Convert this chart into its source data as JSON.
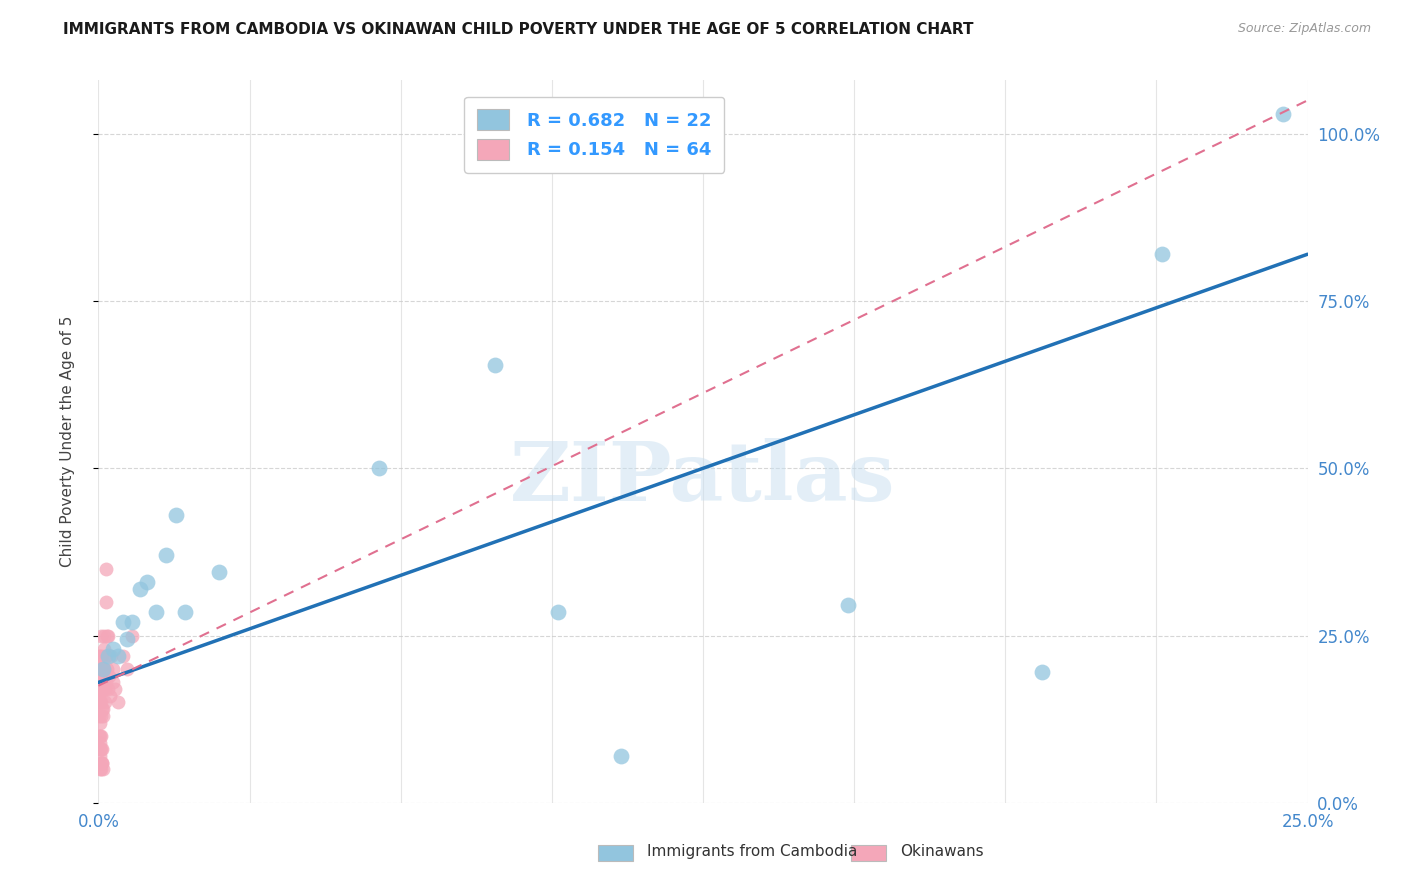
{
  "title": "IMMIGRANTS FROM CAMBODIA VS OKINAWAN CHILD POVERTY UNDER THE AGE OF 5 CORRELATION CHART",
  "source": "Source: ZipAtlas.com",
  "ylabel": "Child Poverty Under the Age of 5",
  "xlim": [
    0,
    0.25
  ],
  "ylim": [
    0,
    1.08
  ],
  "yticks": [
    0.0,
    0.25,
    0.5,
    0.75,
    1.0
  ],
  "xtick_positions": [
    0.0,
    0.03125,
    0.0625,
    0.09375,
    0.125,
    0.15625,
    0.1875,
    0.21875,
    0.25
  ],
  "xtick_labels_show": {
    "0.0": "0.0%",
    "0.25": "25.0%"
  },
  "legend_labels": [
    "Immigrants from Cambodia",
    "Okinawans"
  ],
  "legend_R": [
    0.682,
    0.154
  ],
  "legend_N": [
    22,
    64
  ],
  "blue_scatter_color": "#92c5de",
  "pink_scatter_color": "#f4a7b9",
  "blue_line_color": "#2171b5",
  "pink_line_color": "#e07090",
  "watermark": "ZIPatlas",
  "background_color": "#ffffff",
  "grid_color": "#cccccc",
  "blue_line_x0": 0.0,
  "blue_line_y0": 0.18,
  "blue_line_x1": 0.25,
  "blue_line_y1": 0.82,
  "pink_line_x0": 0.0,
  "pink_line_y0": 0.175,
  "pink_line_x1": 0.25,
  "pink_line_y1": 1.05,
  "cambodia_x": [
    0.001,
    0.002,
    0.003,
    0.004,
    0.005,
    0.006,
    0.007,
    0.0085,
    0.01,
    0.012,
    0.014,
    0.016,
    0.018,
    0.025,
    0.058,
    0.082,
    0.095,
    0.108,
    0.155,
    0.195,
    0.22,
    0.245
  ],
  "cambodia_y": [
    0.2,
    0.22,
    0.23,
    0.22,
    0.27,
    0.245,
    0.27,
    0.32,
    0.33,
    0.285,
    0.37,
    0.43,
    0.285,
    0.345,
    0.5,
    0.655,
    0.285,
    0.07,
    0.295,
    0.195,
    0.82,
    1.03
  ],
  "okinawa_x": [
    0.0001,
    0.0001,
    0.0001,
    0.0002,
    0.0002,
    0.0002,
    0.0002,
    0.0003,
    0.0003,
    0.0003,
    0.0003,
    0.0004,
    0.0004,
    0.0004,
    0.0004,
    0.0004,
    0.0005,
    0.0005,
    0.0005,
    0.0005,
    0.0006,
    0.0006,
    0.0006,
    0.0007,
    0.0007,
    0.0007,
    0.0008,
    0.0008,
    0.0009,
    0.0009,
    0.001,
    0.001,
    0.001,
    0.001,
    0.0011,
    0.0012,
    0.0012,
    0.0013,
    0.0014,
    0.0015,
    0.0015,
    0.0016,
    0.0017,
    0.0018,
    0.002,
    0.002,
    0.0022,
    0.0024,
    0.0025,
    0.003,
    0.003,
    0.0035,
    0.004,
    0.005,
    0.006,
    0.007,
    0.0003,
    0.0004,
    0.0005,
    0.0006,
    0.0007,
    0.0008,
    0.001,
    0.0015
  ],
  "okinawa_y": [
    0.2,
    0.18,
    0.16,
    0.15,
    0.22,
    0.13,
    0.1,
    0.17,
    0.15,
    0.2,
    0.09,
    0.05,
    0.18,
    0.12,
    0.07,
    0.22,
    0.2,
    0.13,
    0.08,
    0.17,
    0.15,
    0.25,
    0.1,
    0.2,
    0.14,
    0.06,
    0.17,
    0.22,
    0.13,
    0.19,
    0.2,
    0.18,
    0.17,
    0.14,
    0.25,
    0.2,
    0.23,
    0.17,
    0.15,
    0.22,
    0.18,
    0.35,
    0.25,
    0.2,
    0.25,
    0.17,
    0.19,
    0.16,
    0.22,
    0.2,
    0.18,
    0.17,
    0.15,
    0.22,
    0.2,
    0.25,
    0.1,
    0.08,
    0.06,
    0.05,
    0.08,
    0.06,
    0.05,
    0.3
  ]
}
